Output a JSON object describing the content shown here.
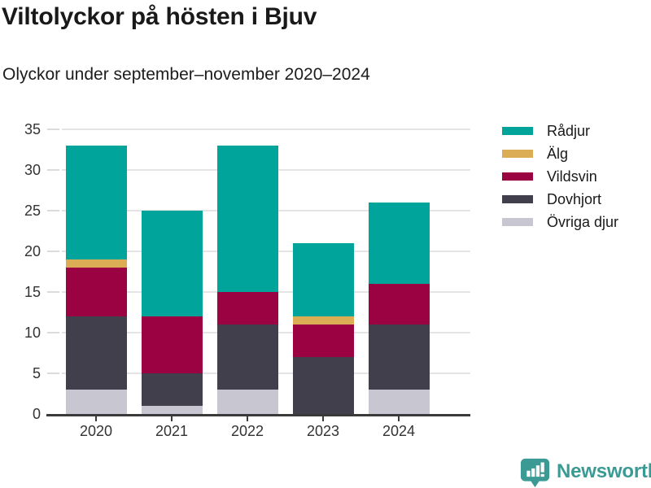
{
  "header": {
    "title": "Viltolyckor på hösten i Bjuv",
    "subtitle": "Olyckor under september–november 2020–2024"
  },
  "chart_data": {
    "type": "bar",
    "stacked": true,
    "title": "Viltolyckor på hösten i Bjuv",
    "subtitle": "Olyckor under september–november 2020–2024",
    "categories": [
      "2020",
      "2021",
      "2022",
      "2023",
      "2024"
    ],
    "series": [
      {
        "name": "Övriga djur",
        "color": "#C8C7D1",
        "values": [
          3,
          1,
          3,
          0,
          3
        ]
      },
      {
        "name": "Dovhjort",
        "color": "#423F4D",
        "values": [
          9,
          4,
          8,
          7,
          8
        ]
      },
      {
        "name": "Vildsvin",
        "color": "#9A0242",
        "values": [
          6,
          7,
          4,
          4,
          5
        ]
      },
      {
        "name": "Älg",
        "color": "#DBAD55",
        "values": [
          1,
          0,
          0,
          1,
          0
        ]
      },
      {
        "name": "Rådjur",
        "color": "#00A49B",
        "values": [
          14,
          13,
          18,
          9,
          10
        ]
      }
    ],
    "totals": [
      33,
      25,
      33,
      21,
      26
    ],
    "ylim": [
      0,
      35
    ],
    "yticks": [
      0,
      5,
      10,
      15,
      20,
      25,
      30,
      35
    ],
    "grid": true,
    "legend_position": "right",
    "legend_order": [
      "Rådjur",
      "Älg",
      "Vildsvin",
      "Dovhjort",
      "Övriga djur"
    ]
  },
  "footer": {
    "brand": "Newsworthy",
    "accent_color": "#3B9A93"
  },
  "style": {
    "grid_color": "#E4E4E7",
    "axis_color": "#3A3A3A",
    "tick_label_color": "#333333",
    "title_color": "#191919"
  }
}
